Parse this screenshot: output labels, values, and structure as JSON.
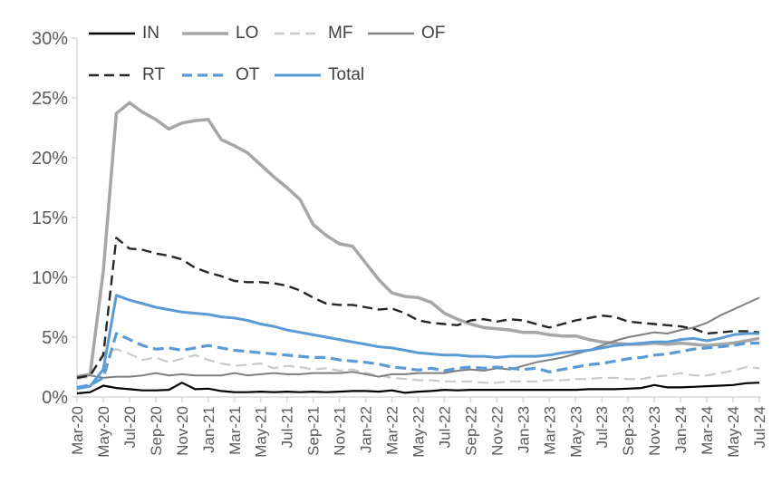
{
  "chart_data": {
    "type": "line",
    "title": "",
    "xlabel": "",
    "ylabel": "",
    "y_min": 0,
    "y_max": 30,
    "y_tick_step": 5,
    "y_ticks": [
      "0%",
      "5%",
      "10%",
      "15%",
      "20%",
      "25%",
      "30%"
    ],
    "x_tick_every": 2,
    "grid": "off",
    "legend_position": "top",
    "axis_color": "#D9D9D9",
    "tick_label_color": "#595959",
    "legend_text_color": "#404040",
    "x": [
      "Mar-20",
      "Apr-20",
      "May-20",
      "Jun-20",
      "Jul-20",
      "Aug-20",
      "Sep-20",
      "Oct-20",
      "Nov-20",
      "Dec-20",
      "Jan-21",
      "Feb-21",
      "Mar-21",
      "Apr-21",
      "May-21",
      "Jun-21",
      "Jul-21",
      "Aug-21",
      "Sep-21",
      "Oct-21",
      "Nov-21",
      "Dec-21",
      "Jan-22",
      "Feb-22",
      "Mar-22",
      "Apr-22",
      "May-22",
      "Jun-22",
      "Jul-22",
      "Aug-22",
      "Sep-22",
      "Oct-22",
      "Nov-22",
      "Dec-22",
      "Jan-23",
      "Feb-23",
      "Mar-23",
      "Apr-23",
      "May-23",
      "Jun-23",
      "Jul-23",
      "Aug-23",
      "Sep-23",
      "Oct-23",
      "Nov-23",
      "Dec-23",
      "Jan-24",
      "Feb-24",
      "Mar-24",
      "Apr-24",
      "May-24",
      "Jun-24",
      "Jul-24"
    ],
    "series": [
      {
        "name": "IN",
        "color": "#000000",
        "style": "solid",
        "width": 2.2,
        "dash": "",
        "values": [
          0.3,
          0.4,
          0.95,
          0.75,
          0.65,
          0.55,
          0.55,
          0.6,
          1.2,
          0.65,
          0.7,
          0.5,
          0.4,
          0.4,
          0.45,
          0.4,
          0.45,
          0.4,
          0.45,
          0.4,
          0.45,
          0.5,
          0.5,
          0.45,
          0.55,
          0.35,
          0.45,
          0.5,
          0.6,
          0.55,
          0.6,
          0.6,
          0.6,
          0.6,
          0.6,
          0.6,
          0.6,
          0.6,
          0.6,
          0.65,
          0.65,
          0.65,
          0.7,
          0.75,
          1.0,
          0.8,
          0.8,
          0.85,
          0.9,
          0.95,
          1.0,
          1.15,
          1.2
        ]
      },
      {
        "name": "LO",
        "color": "#A6A6A6",
        "style": "solid",
        "width": 3.5,
        "dash": "",
        "values": [
          1.7,
          1.9,
          10.5,
          23.7,
          24.6,
          23.8,
          23.2,
          22.4,
          22.9,
          23.1,
          23.2,
          21.5,
          21.0,
          20.4,
          19.4,
          18.4,
          17.5,
          16.5,
          14.4,
          13.5,
          12.8,
          12.6,
          11.2,
          9.8,
          8.7,
          8.4,
          8.3,
          7.9,
          7.0,
          6.5,
          6.1,
          5.8,
          5.7,
          5.6,
          5.4,
          5.4,
          5.2,
          5.1,
          5.1,
          4.8,
          4.6,
          4.5,
          4.4,
          4.4,
          4.5,
          4.4,
          4.5,
          4.4,
          4.3,
          4.4,
          4.5,
          4.7,
          4.9
        ]
      },
      {
        "name": "MF",
        "color": "#C9C9C9",
        "style": "dashed",
        "width": 2.2,
        "dash": "12 6",
        "values": [
          1.5,
          1.7,
          3.7,
          4.0,
          3.6,
          3.1,
          3.3,
          2.9,
          3.2,
          3.5,
          3.1,
          2.8,
          2.6,
          2.7,
          2.8,
          2.4,
          2.6,
          2.5,
          2.3,
          2.4,
          2.2,
          2.3,
          2.0,
          1.8,
          1.6,
          1.5,
          1.4,
          1.4,
          1.3,
          1.3,
          1.3,
          1.2,
          1.2,
          1.3,
          1.3,
          1.3,
          1.4,
          1.4,
          1.5,
          1.5,
          1.6,
          1.6,
          1.5,
          1.5,
          1.7,
          1.8,
          2.0,
          1.8,
          1.8,
          2.0,
          2.2,
          2.5,
          2.4
        ]
      },
      {
        "name": "OF",
        "color": "#7F7F7F",
        "style": "solid",
        "width": 2.0,
        "dash": "",
        "values": [
          1.7,
          1.8,
          1.6,
          1.7,
          1.7,
          1.8,
          2.0,
          1.8,
          1.9,
          1.8,
          1.8,
          1.8,
          2.0,
          1.8,
          1.9,
          2.0,
          1.9,
          1.9,
          2.0,
          2.0,
          2.0,
          2.1,
          1.9,
          1.7,
          1.9,
          1.9,
          2.0,
          2.0,
          2.0,
          2.2,
          2.3,
          2.2,
          2.4,
          2.3,
          2.6,
          2.9,
          3.1,
          3.3,
          3.6,
          3.9,
          4.3,
          4.7,
          5.0,
          5.2,
          5.4,
          5.3,
          5.6,
          5.8,
          6.2,
          6.8,
          7.3,
          7.8,
          8.3
        ]
      },
      {
        "name": "RT",
        "color": "#262626",
        "style": "dashed",
        "width": 2.4,
        "dash": "11 6",
        "values": [
          1.6,
          1.8,
          3.5,
          13.3,
          12.4,
          12.3,
          12.0,
          11.8,
          11.5,
          10.8,
          10.4,
          10.1,
          9.7,
          9.6,
          9.6,
          9.5,
          9.3,
          8.9,
          8.3,
          7.8,
          7.7,
          7.7,
          7.5,
          7.3,
          7.4,
          7.0,
          6.4,
          6.2,
          6.1,
          6.0,
          6.4,
          6.5,
          6.3,
          6.5,
          6.4,
          6.1,
          5.8,
          6.1,
          6.4,
          6.6,
          6.8,
          6.7,
          6.3,
          6.2,
          6.1,
          6.0,
          5.9,
          5.7,
          5.3,
          5.4,
          5.5,
          5.5,
          5.4
        ]
      },
      {
        "name": "OT",
        "color": "#5B9BD5",
        "style": "dashed",
        "width": 3.2,
        "dash": "12 6",
        "values": [
          0.8,
          1.0,
          1.6,
          5.3,
          4.8,
          4.3,
          4.0,
          4.1,
          3.9,
          4.1,
          4.3,
          4.1,
          3.9,
          3.8,
          3.7,
          3.6,
          3.5,
          3.4,
          3.3,
          3.3,
          3.1,
          3.0,
          2.9,
          2.75,
          2.5,
          2.4,
          2.25,
          2.4,
          2.2,
          2.4,
          2.5,
          2.4,
          2.5,
          2.4,
          2.3,
          2.4,
          2.1,
          2.3,
          2.5,
          2.7,
          2.8,
          3.0,
          3.2,
          3.3,
          3.5,
          3.6,
          3.8,
          4.0,
          4.1,
          4.2,
          4.3,
          4.5,
          4.5
        ]
      },
      {
        "name": "Total",
        "color": "#5B9BD5",
        "style": "solid",
        "width": 3.0,
        "dash": "",
        "values": [
          0.7,
          0.9,
          2.3,
          8.5,
          8.1,
          7.8,
          7.5,
          7.3,
          7.1,
          7.0,
          6.9,
          6.7,
          6.6,
          6.4,
          6.1,
          5.9,
          5.6,
          5.4,
          5.2,
          5.0,
          4.8,
          4.6,
          4.4,
          4.2,
          4.1,
          3.9,
          3.7,
          3.6,
          3.5,
          3.5,
          3.4,
          3.4,
          3.3,
          3.4,
          3.4,
          3.4,
          3.5,
          3.7,
          3.8,
          3.9,
          4.1,
          4.3,
          4.4,
          4.5,
          4.6,
          4.6,
          4.8,
          4.9,
          4.7,
          4.9,
          5.2,
          5.3,
          5.3
        ]
      }
    ]
  }
}
